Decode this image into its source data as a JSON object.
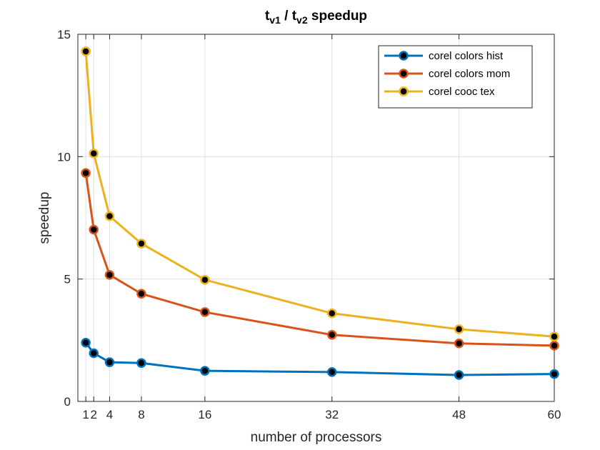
{
  "chart_data": {
    "type": "line",
    "title": {
      "main": "t",
      "sub1": "v1",
      "sep": " / t",
      "sub2": "v2",
      "rest": " speedup"
    },
    "xlabel": "number of processors",
    "ylabel": "speedup",
    "x": [
      1,
      2,
      4,
      8,
      16,
      32,
      48,
      60
    ],
    "xticks": [
      1,
      2,
      4,
      8,
      16,
      32,
      48,
      60
    ],
    "xtick_labels": [
      "1",
      "2",
      "4",
      "8",
      "16",
      "32",
      "48",
      "60"
    ],
    "yticks": [
      0,
      5,
      10,
      15
    ],
    "ytick_labels": [
      "0",
      "5",
      "10",
      "15"
    ],
    "xlim": [
      0,
      60
    ],
    "ylim": [
      0,
      15
    ],
    "grid": true,
    "legend_position": "top-right",
    "marker_fill": "#000000",
    "series": [
      {
        "name": "corel colors hist",
        "color": "#0072BD",
        "values": [
          2.4,
          1.97,
          1.6,
          1.57,
          1.25,
          1.2,
          1.08,
          1.12
        ]
      },
      {
        "name": "corel colors mom",
        "color": "#D95319",
        "values": [
          9.33,
          7.02,
          5.17,
          4.4,
          3.65,
          2.72,
          2.37,
          2.28
        ]
      },
      {
        "name": "corel cooc tex",
        "color": "#EDB120",
        "values": [
          14.3,
          10.13,
          7.57,
          6.45,
          4.97,
          3.6,
          2.95,
          2.65
        ]
      }
    ]
  }
}
